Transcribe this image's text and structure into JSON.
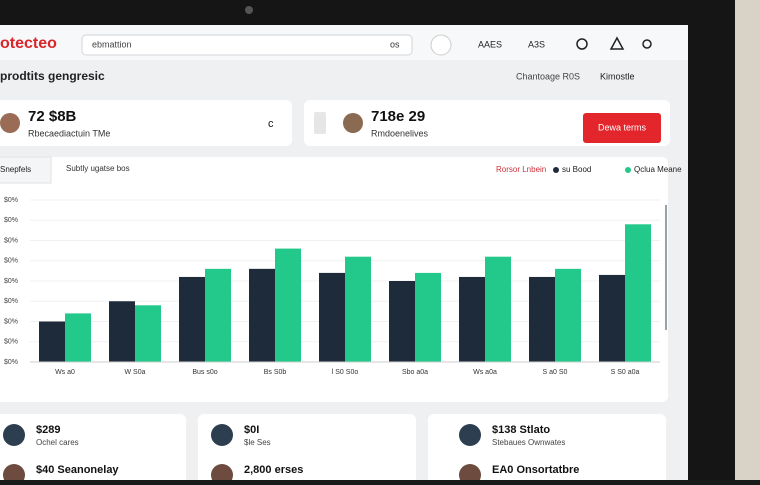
{
  "header": {
    "logo": "otecteo",
    "search": "ebmattion",
    "search_hint": "os",
    "nav": [
      "AAES",
      "A3S"
    ]
  },
  "subheader": {
    "title": "prodtits gengresic",
    "range": "Chantoage R0S",
    "user": "Kimostle"
  },
  "stats": [
    {
      "value": "72 $8B",
      "label": "Rbecaediactuin TMe",
      "extra": "c"
    },
    {
      "value": "718e 29",
      "label": "Rmdoenelives"
    }
  ],
  "action_button": "Dewa terms",
  "chart": {
    "type": "bar",
    "tab": "Snepfels",
    "subtitle": "Subtly ugatse bos",
    "filter_label": "Rorsor Lnbein",
    "categories": [
      "Ws a0",
      "W S0a",
      "Bus s0o",
      "Bs S0b",
      "l S0 S0o",
      "Sbo a0a",
      "Ws a0a",
      "S a0 S0",
      "S S0 a0a"
    ],
    "series": [
      {
        "name": "su Bood",
        "color": "#1e2b3a",
        "values": [
          20,
          30,
          42,
          46,
          44,
          40,
          42,
          42,
          43
        ]
      },
      {
        "name": "Qclua Meane",
        "color": "#22c98a",
        "values": [
          24,
          28,
          46,
          56,
          52,
          44,
          52,
          46,
          68
        ]
      }
    ],
    "ylim": [
      0,
      80
    ],
    "yticks": [
      {
        "value": 0,
        "label": "$0%"
      },
      {
        "value": 10,
        "label": "$0%"
      },
      {
        "value": 20,
        "label": "$0%"
      },
      {
        "value": 30,
        "label": "$0%"
      },
      {
        "value": 40,
        "label": "$0%"
      },
      {
        "value": 50,
        "label": "$0%"
      },
      {
        "value": 60,
        "label": "$0%"
      },
      {
        "value": 70,
        "label": "$0%"
      },
      {
        "value": 80,
        "label": "$0%"
      }
    ]
  },
  "cards": [
    {
      "rows": [
        {
          "value": "$289",
          "label": "Ochel cares"
        },
        {
          "value": "$40 Seanonelay",
          "label": ""
        }
      ]
    },
    {
      "rows": [
        {
          "value": "$0I",
          "label": "$le Ses"
        },
        {
          "value": "2,800 erses",
          "label": ""
        }
      ]
    },
    {
      "rows": [
        {
          "value": "$138 Stlato",
          "label": "Stebaues Ownwates"
        },
        {
          "value": "EA0 Onsortatbre",
          "label": ""
        }
      ]
    }
  ]
}
